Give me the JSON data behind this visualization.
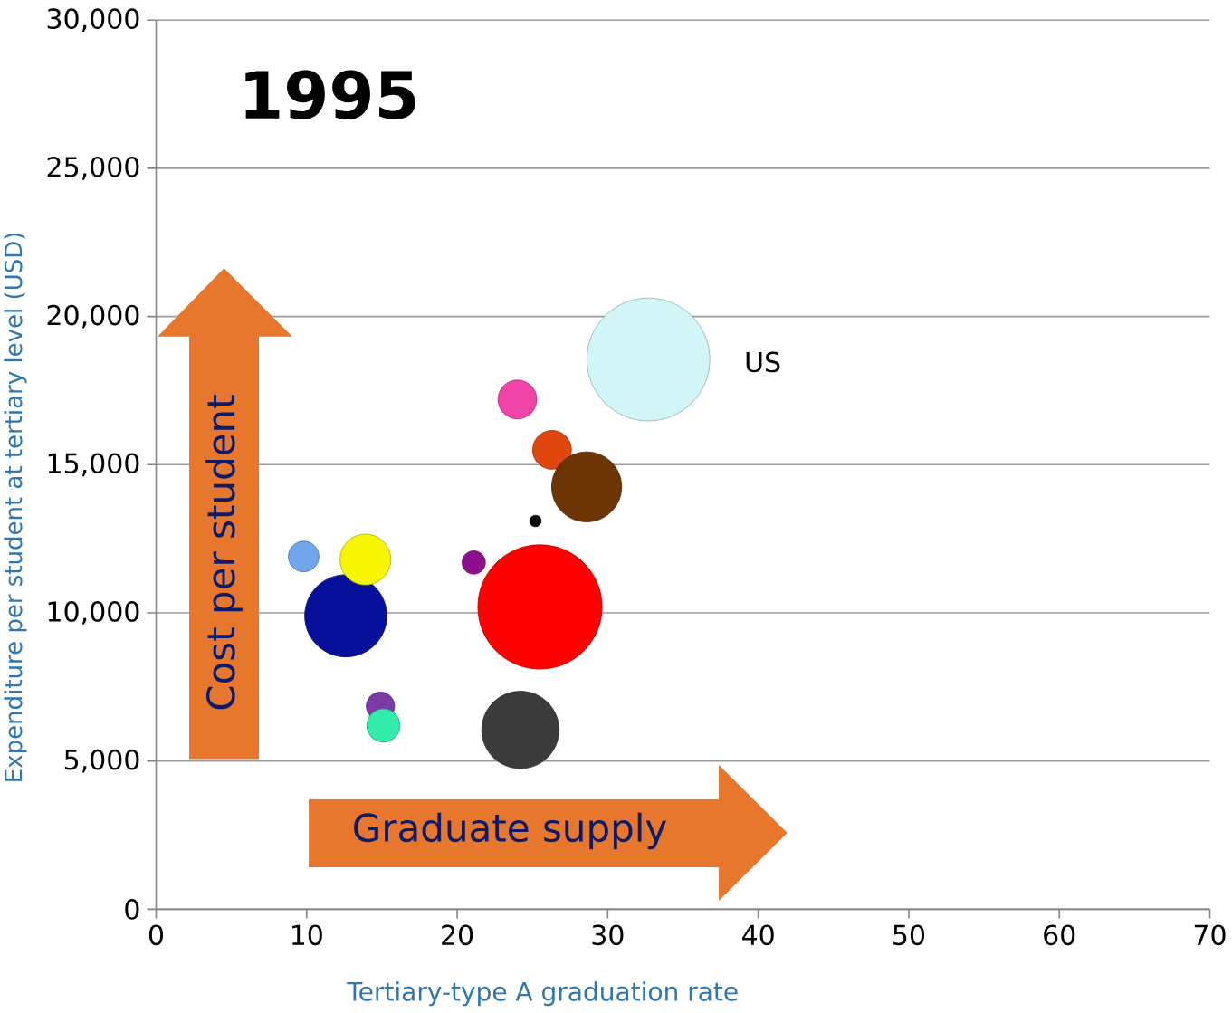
{
  "chart_data": {
    "type": "bubble",
    "title": "1995",
    "xlabel": "Tertiary-type A graduation rate",
    "ylabel": "Expenditure per student at tertiary level (USD)",
    "x": [
      9.8,
      12.6,
      13.9,
      14.9,
      15.1,
      25.5,
      21.1,
      24.2,
      25.2,
      24.0,
      26.3,
      28.6,
      32.7
    ],
    "values": [
      11900,
      9900,
      11800,
      6850,
      6200,
      10200,
      11700,
      6050,
      13100,
      17200,
      15500,
      14250,
      18550
    ],
    "sizes": [
      0.063,
      0.44,
      0.17,
      0.054,
      0.074,
      1,
      0.037,
      0.39,
      0.0094,
      0.1,
      0.1,
      0.32,
      0.98
    ],
    "colors": [
      "#6fa6ec",
      "#07109a",
      "#f7f500",
      "#7b3aa6",
      "#33ebaa",
      "#ff0000",
      "#8c108e",
      "#3b3b3b",
      "#000000",
      "#f044a8",
      "#e0470e",
      "#6b3506",
      "#d2f6f7"
    ],
    "xlim": [
      0,
      70
    ],
    "ylim": [
      0,
      30000
    ],
    "xticks": [
      0,
      10,
      20,
      30,
      40,
      50,
      60,
      70
    ],
    "yticks": [
      0,
      {
        "value": 5000,
        "label": "5,000"
      },
      {
        "value": 10000,
        "label": "10,000"
      },
      {
        "value": 15000,
        "label": "15,000"
      },
      {
        "value": 20000,
        "label": "20,000"
      },
      {
        "value": 25000,
        "label": "25,000"
      },
      {
        "value": 30000,
        "label": "30,000"
      }
    ],
    "grid": "y",
    "annotations": [
      "US",
      "Cost per student",
      "Graduate supply"
    ]
  }
}
